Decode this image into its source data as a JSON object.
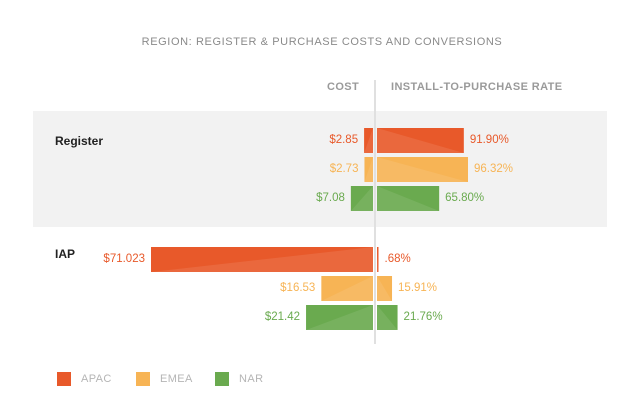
{
  "chart_data": {
    "type": "bar",
    "title": "REGION: REGISTER & PURCHASE COSTS AND CONVERSIONS",
    "columns": {
      "left": "COST",
      "right": "INSTALL-TO-PURCHASE RATE"
    },
    "series": [
      {
        "name": "APAC",
        "color": "#e8592a"
      },
      {
        "name": "EMEA",
        "color": "#f7b455"
      },
      {
        "name": "NAR",
        "color": "#6aaa4f"
      }
    ],
    "groups": [
      {
        "label": "Register",
        "rows": [
          {
            "series": "APAC",
            "cost": 2.85,
            "cost_label": "$2.85",
            "rate": 91.9,
            "rate_label": "91.90%"
          },
          {
            "series": "EMEA",
            "cost": 2.73,
            "cost_label": "$2.73",
            "rate": 96.32,
            "rate_label": "96.32%"
          },
          {
            "series": "NAR",
            "cost": 7.08,
            "cost_label": "$7.08",
            "rate": 65.8,
            "rate_label": "65.80%"
          }
        ]
      },
      {
        "label": "IAP",
        "rows": [
          {
            "series": "APAC",
            "cost": 71.023,
            "cost_label": "$71.023",
            "rate": 0.68,
            "rate_label": ".68%"
          },
          {
            "series": "EMEA",
            "cost": 16.53,
            "cost_label": "$16.53",
            "rate": 15.91,
            "rate_label": "15.91%"
          },
          {
            "series": "NAR",
            "cost": 21.42,
            "cost_label": "$21.42",
            "rate": 21.76,
            "rate_label": "21.76%"
          }
        ]
      }
    ]
  }
}
